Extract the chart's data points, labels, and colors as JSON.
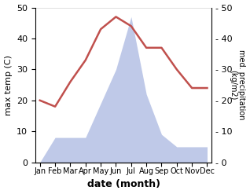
{
  "months": [
    "Jan",
    "Feb",
    "Mar",
    "Apr",
    "May",
    "Jun",
    "Jul",
    "Aug",
    "Sep",
    "Oct",
    "Nov",
    "Dec"
  ],
  "temperature": [
    20,
    18,
    26,
    33,
    43,
    47,
    44,
    37,
    37,
    30,
    24,
    24
  ],
  "precipitation": [
    0,
    8,
    8,
    8,
    19,
    30,
    47,
    22,
    9,
    5,
    5,
    5
  ],
  "temp_color": "#c0504d",
  "precip_fill_color": "#bfc9e8",
  "ylabel_left": "max temp (C)",
  "ylabel_right": "med. precipitation\n(kg/m2)",
  "xlabel": "date (month)",
  "ylim": [
    0,
    50
  ],
  "yticks": [
    0,
    10,
    20,
    30,
    40,
    50
  ],
  "background_color": "#ffffff",
  "line_width": 1.8
}
